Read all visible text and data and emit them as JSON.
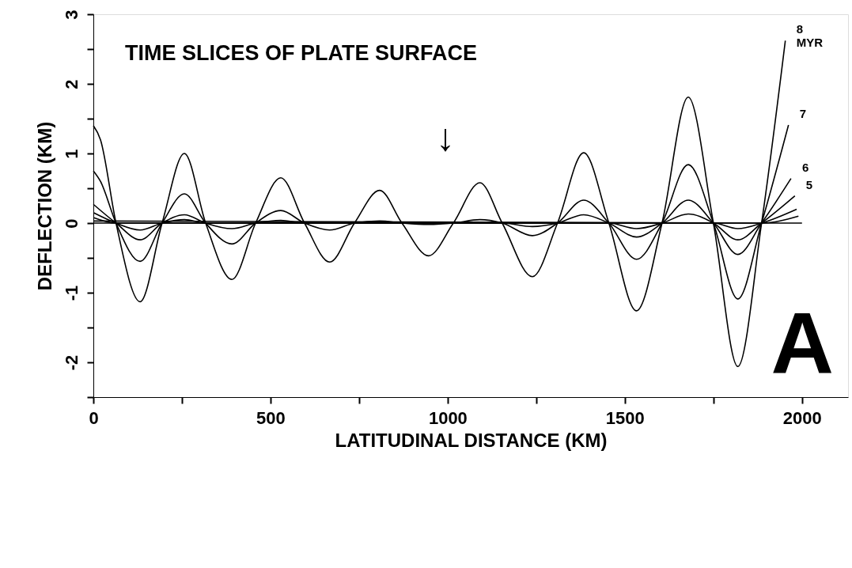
{
  "chart_data": {
    "type": "line",
    "title": "TIME SLICES OF PLATE SURFACE",
    "xlabel": "LATITUDINAL DISTANCE (KM)",
    "ylabel": "DEFLECTION (KM)",
    "xlim": [
      0,
      2130
    ],
    "ylim": [
      -2.5,
      3
    ],
    "xticks": [
      0,
      {
        "value": 250,
        "label": null
      },
      500,
      {
        "value": 750,
        "label": null
      },
      1000,
      {
        "value": 1250,
        "label": null
      },
      1500,
      {
        "value": 1750,
        "label": null
      },
      2000
    ],
    "yticks": [
      {
        "value": -2.5,
        "label": null
      },
      -2,
      {
        "value": -1.5,
        "label": null
      },
      -1,
      {
        "value": -0.5,
        "label": null
      },
      0,
      {
        "value": 0.5,
        "label": null
      },
      1,
      {
        "value": 1.5,
        "label": null
      },
      2,
      {
        "value": 2.5,
        "label": null
      },
      3
    ],
    "grid": false,
    "marker": "none",
    "line_style": "solid",
    "annotations": [
      "A",
      "↓"
    ],
    "series": [
      {
        "name": "8 MYR",
        "color": "#000000",
        "x": [
          0,
          20,
          64,
          132,
          194,
          257,
          317,
          391,
          458,
          529,
          596,
          667,
          737,
          808,
          871,
          946,
          1016,
          1091,
          1154,
          1239,
          1310,
          1384,
          1455,
          1533,
          1605,
          1679,
          1750,
          1819,
          1886,
          1953
        ],
        "values": [
          1.4,
          1.2,
          0,
          -1.13,
          0,
          1.0,
          0,
          -0.81,
          0,
          0.65,
          0,
          -0.56,
          0,
          0.47,
          0,
          -0.47,
          0,
          0.58,
          0,
          -0.77,
          0,
          1.01,
          0,
          -1.26,
          0,
          1.81,
          0,
          -2.06,
          0,
          2.62
        ]
      },
      {
        "name": "7",
        "color": "#000000",
        "x": [
          0,
          20,
          64,
          132,
          194,
          257,
          317,
          391,
          458,
          529,
          596,
          667,
          737,
          808,
          871,
          946,
          1016,
          1091,
          1154,
          1239,
          1310,
          1384,
          1455,
          1533,
          1605,
          1679,
          1750,
          1819,
          1886,
          1962
        ],
        "values": [
          0.75,
          0.6,
          0,
          -0.55,
          0,
          0.42,
          0,
          -0.3,
          0,
          0.18,
          0,
          -0.1,
          0,
          0.03,
          0,
          -0.02,
          0,
          0.05,
          0,
          -0.18,
          0,
          0.33,
          0,
          -0.52,
          0,
          0.84,
          0,
          -1.09,
          0,
          1.41
        ]
      },
      {
        "name": "6",
        "color": "#000000",
        "x": [
          0,
          64,
          132,
          194,
          257,
          317,
          391,
          458,
          529,
          596,
          1154,
          1239,
          1310,
          1384,
          1455,
          1533,
          1605,
          1679,
          1750,
          1819,
          1886,
          1969
        ],
        "values": [
          0.27,
          0,
          -0.24,
          0,
          0.12,
          0,
          -0.08,
          0,
          0.04,
          0,
          0,
          -0.05,
          0,
          0.12,
          0,
          -0.2,
          0,
          0.33,
          0,
          -0.45,
          0,
          0.64
        ]
      },
      {
        "name": "5",
        "color": "#000000",
        "x": [
          0,
          64,
          132,
          194,
          257,
          317,
          1455,
          1533,
          1605,
          1679,
          1750,
          1819,
          1886,
          1980
        ],
        "values": [
          0.15,
          0,
          -0.1,
          0,
          0.05,
          0,
          0,
          -0.08,
          0,
          0.13,
          0,
          -0.24,
          0,
          0.39
        ]
      },
      {
        "color": "#000000",
        "x": [
          0,
          64,
          1750,
          1819,
          1886,
          1985
        ],
        "values": [
          0.08,
          0,
          0,
          -0.08,
          0,
          0.2
        ]
      },
      {
        "color": "#000000",
        "x": [
          0,
          1886,
          1990
        ],
        "values": [
          0.03,
          0,
          0.1
        ]
      },
      {
        "color": "#000000",
        "x": [
          0,
          2000
        ],
        "values": [
          0,
          0
        ]
      }
    ]
  }
}
